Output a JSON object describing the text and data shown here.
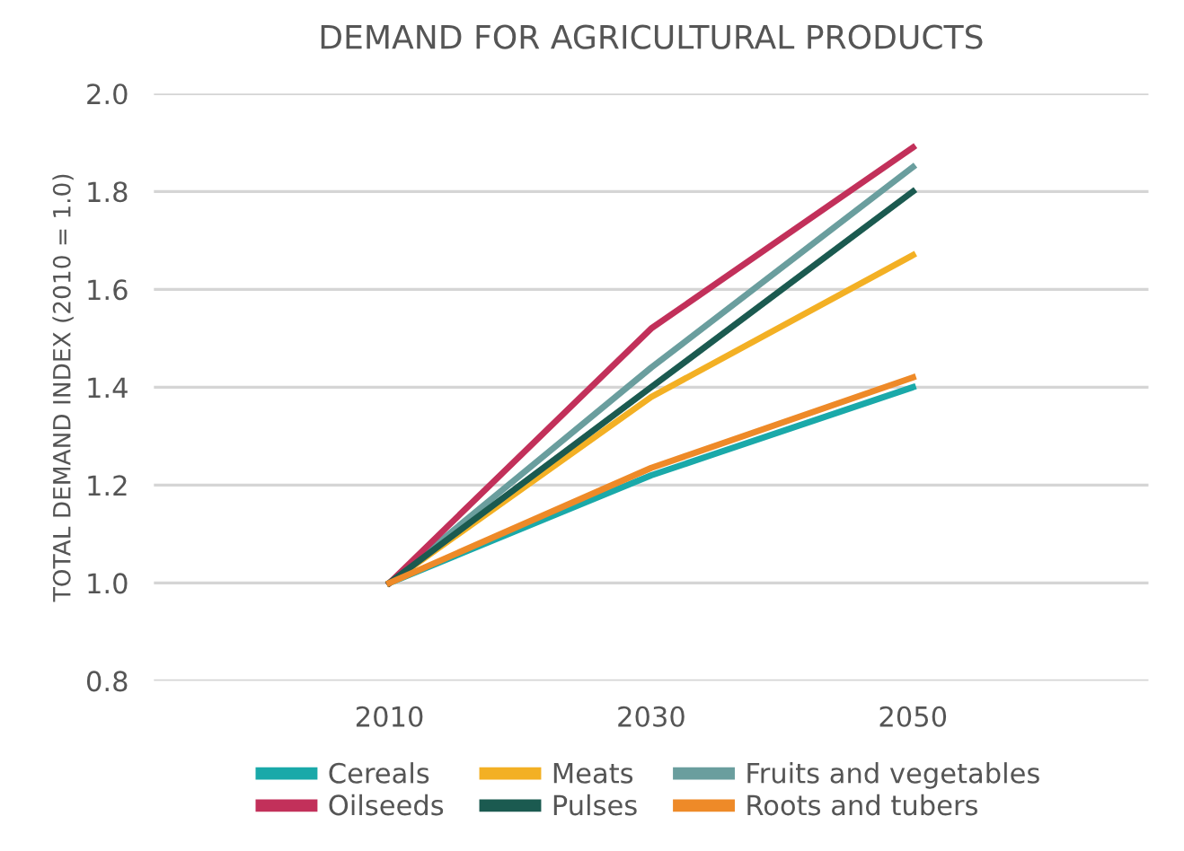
{
  "chart_data": {
    "type": "line",
    "title": "DEMAND FOR AGRICULTURAL PRODUCTS",
    "ylabel": "TOTAL DEMAND INDEX (2010 = 1.0)",
    "categories": [
      "2010",
      "2030",
      "2050"
    ],
    "series": [
      {
        "name": "Cereals",
        "color": "#1aa9a9",
        "values": [
          1.0,
          1.22,
          1.4
        ]
      },
      {
        "name": "Meats",
        "color": "#f3b024",
        "values": [
          1.0,
          1.38,
          1.67
        ]
      },
      {
        "name": "Fruits and vegetables",
        "color": "#6a9e9e",
        "values": [
          1.0,
          1.44,
          1.85
        ]
      },
      {
        "name": "Oilseeds",
        "color": "#c2305a",
        "values": [
          1.0,
          1.52,
          1.89
        ]
      },
      {
        "name": "Pulses",
        "color": "#1b5a50",
        "values": [
          1.0,
          1.4,
          1.8
        ]
      },
      {
        "name": "Roots and tubers",
        "color": "#ee8a28",
        "values": [
          1.0,
          1.235,
          1.42
        ]
      }
    ],
    "ylim": [
      0.8,
      2.0
    ],
    "yticks": [
      0.8,
      {
        "value": 1,
        "label": "1.0"
      },
      1.2,
      1.4,
      1.6,
      1.8,
      {
        "value": 2,
        "label": "2.0"
      }
    ],
    "grid": "y",
    "legend": "bottom",
    "marker": "none",
    "line_style": "solid"
  }
}
